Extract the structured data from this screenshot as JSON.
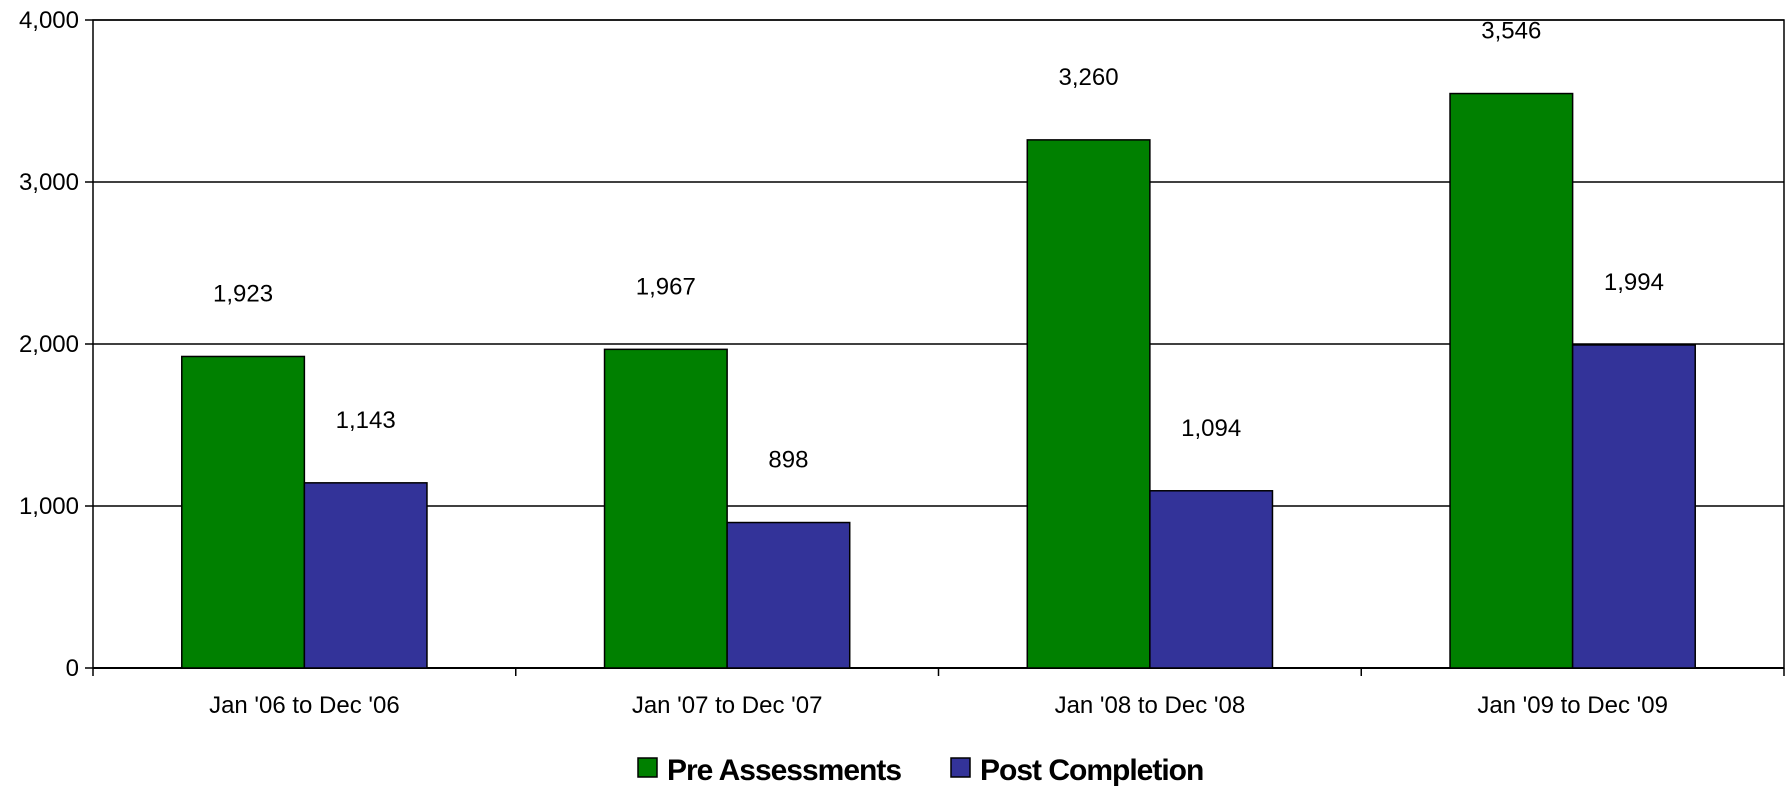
{
  "chart_data": {
    "type": "bar",
    "categories": [
      "Jan '06 to Dec '06",
      "Jan '07 to Dec '07",
      "Jan '08 to Dec '08",
      "Jan '09 to Dec '09"
    ],
    "series": [
      {
        "name": "Pre Assessments",
        "values": [
          1923,
          1967,
          3260,
          3546
        ],
        "labels": [
          "1,923",
          "1,967",
          "3,260",
          "3,546"
        ],
        "color": "#008000"
      },
      {
        "name": "Post Completion",
        "values": [
          1143,
          898,
          1094,
          1994
        ],
        "labels": [
          "1,143",
          "898",
          "1,094",
          "1,994"
        ],
        "color": "#333399"
      }
    ],
    "ylim": [
      0,
      4000
    ],
    "yticks": [
      0,
      1000,
      2000,
      3000,
      4000
    ],
    "ytick_labels": [
      "0",
      "1,000",
      "2,000",
      "3,000",
      "4,000"
    ],
    "grid": true,
    "legend_position": "bottom-center"
  }
}
